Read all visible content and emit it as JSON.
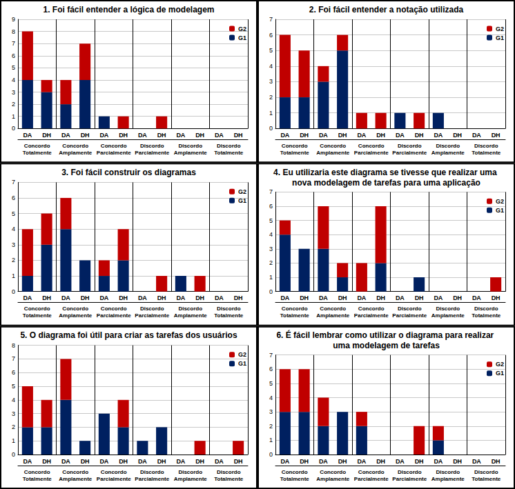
{
  "chart_data": [
    {
      "type": "bar",
      "title": "1. Foi fácil entender a lógica de modelagem",
      "categories": [
        "DA",
        "DH",
        "DA",
        "DH",
        "DA",
        "DH",
        "DA",
        "DH",
        "DA",
        "DH",
        "DA",
        "DH"
      ],
      "category_groups": [
        "Concordo Totalmente",
        "Concordo Amplamente",
        "Concordo Parcialmente",
        "Discordo Parcialmente",
        "Discordo Amplamente",
        "Discordo Totalmente"
      ],
      "series": [
        {
          "name": "G1",
          "color": "#002060",
          "values": [
            4,
            3,
            2,
            4,
            1,
            0,
            0,
            0,
            0,
            0,
            0,
            0
          ]
        },
        {
          "name": "G2",
          "color": "#C00000",
          "values": [
            4,
            1,
            2,
            3,
            0,
            1,
            0,
            1,
            0,
            0,
            0,
            0
          ]
        }
      ],
      "ylim": [
        0,
        9
      ],
      "yticks": [
        0,
        1,
        2,
        3,
        4,
        5,
        6,
        7,
        8,
        9
      ],
      "stacked": true,
      "grid": true,
      "legend": "upper right"
    },
    {
      "type": "bar",
      "title": "2. Foi fácil entender a notação utilizada",
      "categories": [
        "DA",
        "DH",
        "DA",
        "DH",
        "DA",
        "DH",
        "DA",
        "DH",
        "DA",
        "DH",
        "DA",
        "DH"
      ],
      "category_groups": [
        "Concordo Totalmente",
        "Concordo Amplamente",
        "Concordo Parcialmente",
        "Discordo Parcialmente",
        "Discordo Amplamente",
        "Discordo Totalmente"
      ],
      "series": [
        {
          "name": "G1",
          "color": "#002060",
          "values": [
            2,
            2,
            3,
            5,
            0,
            0,
            1,
            0,
            1,
            0,
            0,
            0
          ]
        },
        {
          "name": "G2",
          "color": "#C00000",
          "values": [
            4,
            3,
            1,
            1,
            1,
            1,
            0,
            1,
            0,
            0,
            0,
            0
          ]
        }
      ],
      "ylim": [
        0,
        7
      ],
      "yticks": [
        0,
        1,
        2,
        3,
        4,
        5,
        6,
        7
      ],
      "stacked": true,
      "grid": true,
      "legend": "upper right"
    },
    {
      "type": "bar",
      "title": "3. Foi fácil construir os diagramas",
      "categories": [
        "DA",
        "DH",
        "DA",
        "DH",
        "DA",
        "DH",
        "DA",
        "DH",
        "DA",
        "DH",
        "DA",
        "DH"
      ],
      "category_groups": [
        "Concordo Totalmente",
        "Concordo Amplamente",
        "Concordo Parcialmente",
        "Discordo Parcialmente",
        "Discordo Amplamente",
        "Discordo Totalmente"
      ],
      "series": [
        {
          "name": "G1",
          "color": "#002060",
          "values": [
            1,
            3,
            4,
            2,
            1,
            2,
            0,
            0,
            1,
            0,
            0,
            0
          ]
        },
        {
          "name": "G2",
          "color": "#C00000",
          "values": [
            3,
            2,
            2,
            0,
            1,
            2,
            0,
            1,
            0,
            1,
            0,
            0
          ]
        }
      ],
      "ylim": [
        0,
        7
      ],
      "yticks": [
        0,
        1,
        2,
        3,
        4,
        5,
        6,
        7
      ],
      "stacked": true,
      "grid": true,
      "legend": "upper right"
    },
    {
      "type": "bar",
      "title": "4. Eu utilizaria este diagrama se tivesse que realizar uma nova modelagem de tarefas para uma aplicação",
      "categories": [
        "DA",
        "DH",
        "DA",
        "DH",
        "DA",
        "DH",
        "DA",
        "DH",
        "DA",
        "DH",
        "DA",
        "DH"
      ],
      "category_groups": [
        "Concordo Totalmente",
        "Concordo Amplamente",
        "Concordo Parcialmente",
        "Discordo Parcialmente",
        "Discordo Amplamente",
        "Discordo Totalmente"
      ],
      "series": [
        {
          "name": "G1",
          "color": "#002060",
          "values": [
            4,
            3,
            3,
            1,
            0,
            2,
            0,
            1,
            0,
            0,
            0,
            0
          ]
        },
        {
          "name": "G2",
          "color": "#C00000",
          "values": [
            1,
            0,
            3,
            1,
            2,
            4,
            0,
            0,
            0,
            0,
            0,
            1
          ]
        }
      ],
      "ylim": [
        0,
        7
      ],
      "yticks": [
        0,
        1,
        2,
        3,
        4,
        5,
        6,
        7
      ],
      "stacked": true,
      "grid": true,
      "legend": "upper right"
    },
    {
      "type": "bar",
      "title": "5. O diagrama foi útil para criar as tarefas dos usuários",
      "categories": [
        "DA",
        "DH",
        "DA",
        "DH",
        "DA",
        "DH",
        "DA",
        "DH",
        "DA",
        "DH",
        "DA",
        "DH"
      ],
      "category_groups": [
        "Concordo Totalmente",
        "Concordo Amplamente",
        "Concordo Parcialmente",
        "Discordo Parcialmente",
        "Discordo Amplamente",
        "Discordo Totalmente"
      ],
      "series": [
        {
          "name": "G1",
          "color": "#002060",
          "values": [
            2,
            2,
            4,
            1,
            3,
            2,
            1,
            2,
            0,
            0,
            0,
            0
          ]
        },
        {
          "name": "G2",
          "color": "#C00000",
          "values": [
            3,
            2,
            3,
            0,
            0,
            2,
            0,
            0,
            0,
            1,
            0,
            1
          ]
        }
      ],
      "ylim": [
        0,
        8
      ],
      "yticks": [
        0,
        1,
        2,
        3,
        4,
        5,
        6,
        7,
        8
      ],
      "stacked": true,
      "grid": true,
      "legend": "upper right"
    },
    {
      "type": "bar",
      "title": "6. É fácil lembrar como utilizar o diagrama para realizar uma modelagem de tarefas",
      "categories": [
        "DA",
        "DH",
        "DA",
        "DH",
        "DA",
        "DH",
        "DA",
        "DH",
        "DA",
        "DH",
        "DA",
        "DH"
      ],
      "category_groups": [
        "Concordo Totalmente",
        "Concordo Amplamente",
        "Concordo Parcialmente",
        "Discordo Parcialmente",
        "Discordo Amplamente",
        "Discordo Totalmente"
      ],
      "series": [
        {
          "name": "G1",
          "color": "#002060",
          "values": [
            3,
            3,
            2,
            3,
            2,
            0,
            0,
            0,
            1,
            0,
            0,
            0
          ]
        },
        {
          "name": "G2",
          "color": "#C00000",
          "values": [
            3,
            3,
            2,
            0,
            1,
            0,
            0,
            2,
            1,
            0,
            0,
            0
          ]
        }
      ],
      "ylim": [
        0,
        7
      ],
      "yticks": [
        0,
        1,
        2,
        3,
        4,
        5,
        6,
        7
      ],
      "stacked": true,
      "grid": true,
      "legend": "upper right"
    }
  ]
}
